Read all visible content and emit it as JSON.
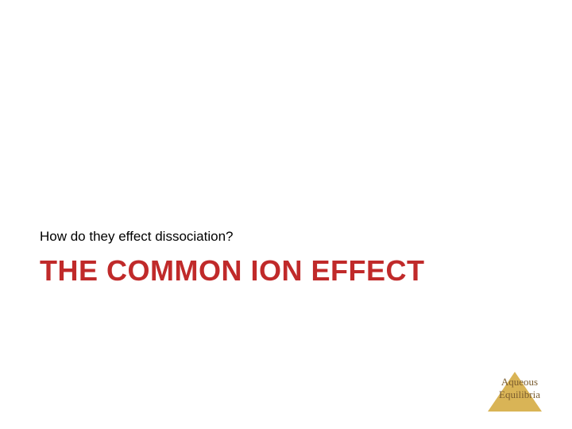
{
  "slide": {
    "subtitle": "How do they effect dissociation?",
    "title": "THE COMMON ION EFFECT",
    "footer_line1": "Aqueous",
    "footer_line2": "Equilibria"
  },
  "colors": {
    "subtitle_color": "#000000",
    "title_color": "#c02a2a",
    "footer_text_color": "#7a5c2e",
    "triangle_color": "#d9b456",
    "background": "#ffffff"
  },
  "typography": {
    "subtitle_fontsize": 17,
    "title_fontsize": 36,
    "footer_fontsize": 13
  }
}
